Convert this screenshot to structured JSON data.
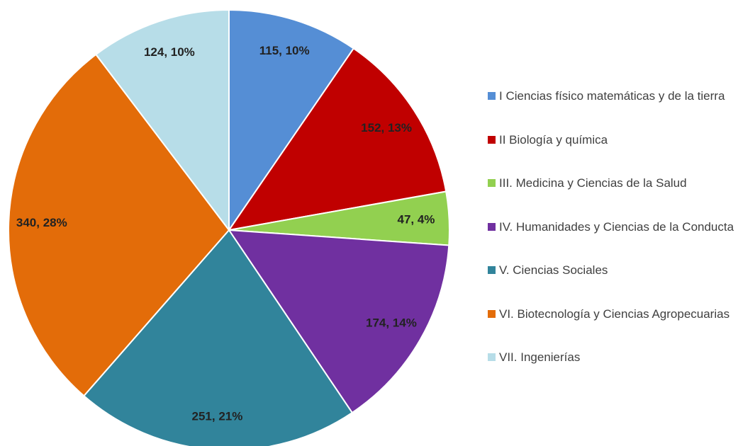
{
  "chart_data": {
    "type": "pie",
    "categories": [
      "I Ciencias físico matemáticas  y de la tierra",
      "II Biología y química",
      "III. Medicina y Ciencias de la Salud",
      "IV. Humanidades y Ciencias de la Conducta",
      "V. Ciencias Sociales",
      "VI. Biotecnología y Ciencias Agropecuarias",
      "VII. Ingenierías"
    ],
    "values": [
      115,
      152,
      47,
      174,
      251,
      340,
      124
    ],
    "value_labels": [
      "115, 10%",
      "152, 13%",
      "47, 4%",
      "174, 14%",
      "251, 21%",
      "340, 28%",
      "124, 10%"
    ],
    "colors": [
      "#558ed5",
      "#c00000",
      "#92d050",
      "#7030a0",
      "#31849b",
      "#e36c09",
      "#b7dde8"
    ],
    "legend": "right"
  }
}
